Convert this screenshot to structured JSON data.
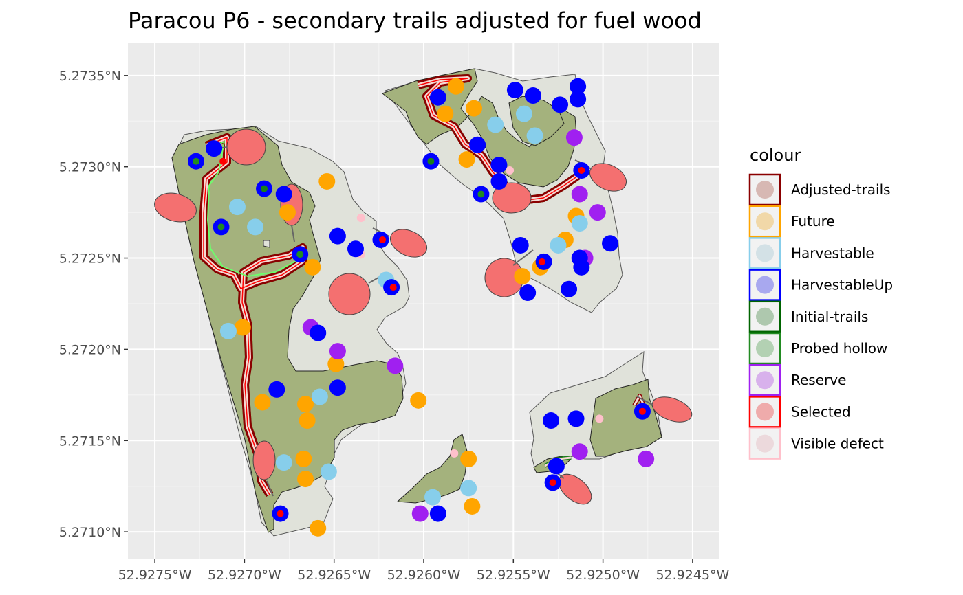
{
  "chart_data": {
    "type": "map",
    "title": "Paracou P6 - secondary trails adjusted for fuel wood",
    "x_ticks": [
      "52.9275°W",
      "52.9270°W",
      "52.9265°W",
      "52.9260°W",
      "52.9255°W",
      "52.9250°W",
      "52.9245°W"
    ],
    "y_ticks": [
      "5.2735°N",
      "5.2730°N",
      "5.2725°N",
      "5.2720°N",
      "5.2715°N",
      "5.2710°N"
    ],
    "x_tick_values": [
      -52.9275,
      -52.927,
      -52.9265,
      -52.926,
      -52.9255,
      -52.925,
      -52.9245
    ],
    "y_tick_values": [
      5.2735,
      5.273,
      5.2725,
      5.272,
      5.2715,
      5.271
    ],
    "xlim": [
      -52.92765,
      -52.92435
    ],
    "ylim": [
      5.27085,
      5.27368
    ],
    "grid": true,
    "legend": {
      "title": "colour",
      "position": "right",
      "items": [
        {
          "label": "Adjusted-trails",
          "color": "#8b0000"
        },
        {
          "label": "Future",
          "color": "#ffa500"
        },
        {
          "label": "Harvestable",
          "color": "#87ceeb"
        },
        {
          "label": "HarvestableUp",
          "color": "#0000ff"
        },
        {
          "label": "Initial-trails",
          "color": "#006400"
        },
        {
          "label": "Probed hollow",
          "color": "#228b22"
        },
        {
          "label": "Reserve",
          "color": "#a020f0"
        },
        {
          "label": "Selected",
          "color": "#ff0000"
        },
        {
          "label": "Visible defect",
          "color": "#ffc0cb"
        }
      ]
    },
    "points": {
      "Future": [
        [
          -52.92582,
          5.27344
        ],
        [
          -52.92588,
          5.27329
        ],
        [
          -52.92572,
          5.27332
        ],
        [
          -52.92576,
          5.27304
        ],
        [
          -52.92654,
          5.27292
        ],
        [
          -52.92676,
          5.27275
        ],
        [
          -52.92662,
          5.27245
        ],
        [
          -52.92545,
          5.2724
        ],
        [
          -52.92535,
          5.27245
        ],
        [
          -52.92521,
          5.2726
        ],
        [
          -52.92515,
          5.27273
        ],
        [
          -52.92701,
          5.27212
        ],
        [
          -52.92649,
          5.27192
        ],
        [
          -52.92603,
          5.27172
        ],
        [
          -52.9269,
          5.27171
        ],
        [
          -52.92666,
          5.2717
        ],
        [
          -52.92665,
          5.27161
        ],
        [
          -52.92667,
          5.2714
        ],
        [
          -52.92666,
          5.27129
        ],
        [
          -52.92575,
          5.2714
        ],
        [
          -52.92573,
          5.27114
        ],
        [
          -52.92659,
          5.27102
        ]
      ],
      "Harvestable": [
        [
          -52.9256,
          5.27323
        ],
        [
          -52.92544,
          5.27329
        ],
        [
          -52.92538,
          5.27317
        ],
        [
          -52.92513,
          5.27269
        ],
        [
          -52.92525,
          5.27257
        ],
        [
          -52.92704,
          5.27278
        ],
        [
          -52.92694,
          5.27267
        ],
        [
          -52.92621,
          5.27238
        ],
        [
          -52.92709,
          5.2721
        ],
        [
          -52.92658,
          5.27174
        ],
        [
          -52.92678,
          5.27138
        ],
        [
          -52.92653,
          5.27133
        ],
        [
          -52.92575,
          5.27124
        ],
        [
          -52.92595,
          5.27119
        ]
      ],
      "HarvestableUp": [
        [
          -52.92549,
          5.27342
        ],
        [
          -52.92539,
          5.27339
        ],
        [
          -52.92514,
          5.27344
        ],
        [
          -52.92514,
          5.27337
        ],
        [
          -52.92524,
          5.27334
        ],
        [
          -52.92592,
          5.27338
        ],
        [
          -52.9257,
          5.27312
        ],
        [
          -52.92596,
          5.27303
        ],
        [
          -52.92558,
          5.27301
        ],
        [
          -52.92558,
          5.27292
        ],
        [
          -52.92512,
          5.27298
        ],
        [
          -52.92568,
          5.27285
        ],
        [
          -52.92689,
          5.27288
        ],
        [
          -52.92678,
          5.27285
        ],
        [
          -52.92717,
          5.2731
        ],
        [
          -52.92727,
          5.27303
        ],
        [
          -52.92713,
          5.27267
        ],
        [
          -52.92669,
          5.27252
        ],
        [
          -52.92648,
          5.27262
        ],
        [
          -52.92638,
          5.27255
        ],
        [
          -52.92624,
          5.2726
        ],
        [
          -52.92618,
          5.27234
        ],
        [
          -52.92546,
          5.27257
        ],
        [
          -52.92533,
          5.27248
        ],
        [
          -52.92513,
          5.2725
        ],
        [
          -52.92512,
          5.27245
        ],
        [
          -52.92496,
          5.27258
        ],
        [
          -52.92542,
          5.27231
        ],
        [
          -52.92519,
          5.27233
        ],
        [
          -52.92659,
          5.27209
        ],
        [
          -52.92648,
          5.27179
        ],
        [
          -52.92682,
          5.27178
        ],
        [
          -52.92529,
          5.27161
        ],
        [
          -52.92515,
          5.27162
        ],
        [
          -52.92478,
          5.27166
        ],
        [
          -52.92526,
          5.27136
        ],
        [
          -52.92528,
          5.27127
        ],
        [
          -52.9268,
          5.2711
        ],
        [
          -52.92592,
          5.2711
        ]
      ],
      "Initial-trails": [
        [
          -52.92596,
          5.27303
        ],
        [
          -52.92689,
          5.27288
        ]
      ],
      "Probed hollow": [
        [
          -52.92727,
          5.27303
        ],
        [
          -52.92713,
          5.27267
        ],
        [
          -52.92669,
          5.27252
        ],
        [
          -52.92568,
          5.27285
        ]
      ],
      "Reserve": [
        [
          -52.92516,
          5.27316
        ],
        [
          -52.92513,
          5.27285
        ],
        [
          -52.92503,
          5.27275
        ],
        [
          -52.9251,
          5.2725
        ],
        [
          -52.92663,
          5.27212
        ],
        [
          -52.92648,
          5.27199
        ],
        [
          -52.92616,
          5.27191
        ],
        [
          -52.92513,
          5.27144
        ],
        [
          -52.92476,
          5.2714
        ],
        [
          -52.92602,
          5.2711
        ]
      ],
      "Selected": [
        [
          -52.92712,
          5.27303
        ],
        [
          -52.92623,
          5.2726
        ],
        [
          -52.92617,
          5.27234
        ],
        [
          -52.92512,
          5.27298
        ],
        [
          -52.92534,
          5.27248
        ],
        [
          -52.92478,
          5.27166
        ],
        [
          -52.92528,
          5.27127
        ],
        [
          -52.9268,
          5.2711
        ]
      ],
      "Visible defect": [
        [
          -52.92552,
          5.27298
        ],
        [
          -52.92635,
          5.27272
        ],
        [
          -52.92635,
          5.27252
        ],
        [
          -52.92502,
          5.27162
        ],
        [
          -52.92583,
          5.27143
        ]
      ]
    },
    "symbols": {
      "large_tree": "red ellipse (tree crown)",
      "trail": "secondary trail line",
      "plot": "green polygon (harvestable area)"
    }
  }
}
